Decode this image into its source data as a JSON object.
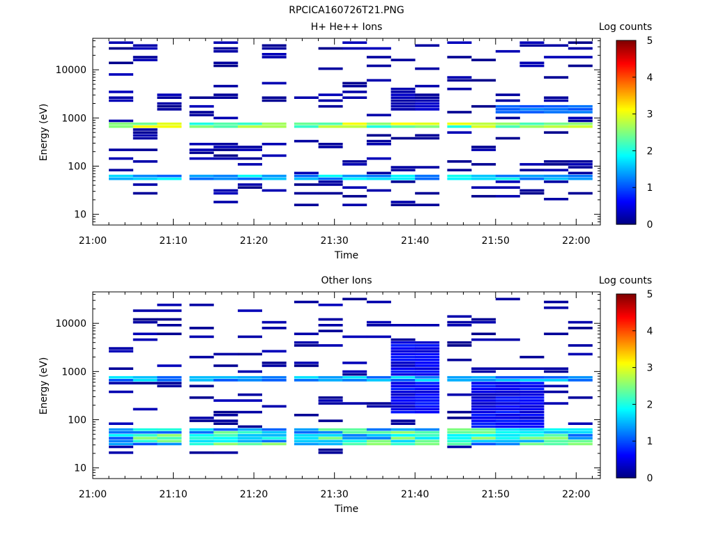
{
  "figure": {
    "title": "RPCICA160726T21.PNG"
  },
  "colorbar": {
    "label": "Log counts",
    "ticks": [
      "0",
      "1",
      "2",
      "3",
      "4",
      "5"
    ]
  },
  "chart_data": [
    {
      "type": "heatmap",
      "title": "H+ He++ Ions",
      "xlabel": "Time",
      "ylabel": "Energy (eV)",
      "x_ticks": [
        "21:00",
        "21:10",
        "21:20",
        "21:30",
        "21:40",
        "21:50",
        "22:00"
      ],
      "y_ticks": [
        "10",
        "100",
        "1000",
        "10000"
      ],
      "y_scale": "log",
      "xlim": [
        "21:00",
        "22:03"
      ],
      "ylim": [
        6,
        45000
      ],
      "colorbar_label": "Log counts",
      "colorbar_range": [
        0,
        5
      ],
      "time_bins": [
        "21:02",
        "21:05",
        "21:08",
        "21:12",
        "21:15",
        "21:18",
        "21:21",
        "21:25",
        "21:28",
        "21:31",
        "21:34",
        "21:37",
        "21:40",
        "21:44",
        "21:47",
        "21:50",
        "21:53",
        "21:56",
        "21:59"
      ],
      "features": [
        {
          "energy_min": 600,
          "energy_max": 850,
          "level": [
            2.0,
            3.2
          ],
          "note": "persistent band"
        },
        {
          "energy_min": 48,
          "energy_max": 65,
          "level": [
            1.0,
            2.0
          ],
          "note": "persistent band"
        },
        {
          "energy_min": 1200,
          "energy_max": 1800,
          "level": [
            1.0,
            1.3
          ],
          "start": "21:50",
          "end": "22:03"
        },
        {
          "energy_min": 1500,
          "energy_max": 3200,
          "level": [
            0.1,
            0.4
          ],
          "start": "21:37",
          "end": "21:40"
        }
      ],
      "background": {
        "energy_min": 15,
        "energy_max": 40000,
        "level": [
          0.05,
          0.3
        ],
        "note": "sparse"
      }
    },
    {
      "type": "heatmap",
      "title": "Other Ions",
      "xlabel": "Time",
      "ylabel": "Energy (eV)",
      "x_ticks": [
        "21:00",
        "21:10",
        "21:20",
        "21:30",
        "21:40",
        "21:50",
        "22:00"
      ],
      "y_ticks": [
        "10",
        "100",
        "1000",
        "10000"
      ],
      "y_scale": "log",
      "xlim": [
        "21:00",
        "22:03"
      ],
      "ylim": [
        6,
        45000
      ],
      "colorbar_label": "Log counts",
      "colorbar_range": [
        0,
        5
      ],
      "time_bins": [
        "21:02",
        "21:05",
        "21:08",
        "21:12",
        "21:15",
        "21:18",
        "21:21",
        "21:25",
        "21:28",
        "21:31",
        "21:34",
        "21:37",
        "21:40",
        "21:44",
        "21:47",
        "21:50",
        "21:53",
        "21:56",
        "21:59"
      ],
      "features": [
        {
          "energy_min": 650,
          "energy_max": 850,
          "level": [
            1.0,
            1.8
          ],
          "note": "persistent band"
        },
        {
          "energy_min": 28,
          "energy_max": 65,
          "level": [
            1.0,
            2.6
          ],
          "note": "persistent band"
        },
        {
          "energy_min": 130,
          "energy_max": 4500,
          "level": [
            0.3,
            0.8
          ],
          "start": "21:37",
          "end": "21:40"
        },
        {
          "energy_min": 70,
          "energy_max": 600,
          "level": [
            0.3,
            0.8
          ],
          "start": "21:47",
          "end": "21:53"
        }
      ],
      "background": {
        "energy_min": 20,
        "energy_max": 35000,
        "level": [
          0.05,
          0.3
        ],
        "note": "sparse"
      }
    }
  ]
}
